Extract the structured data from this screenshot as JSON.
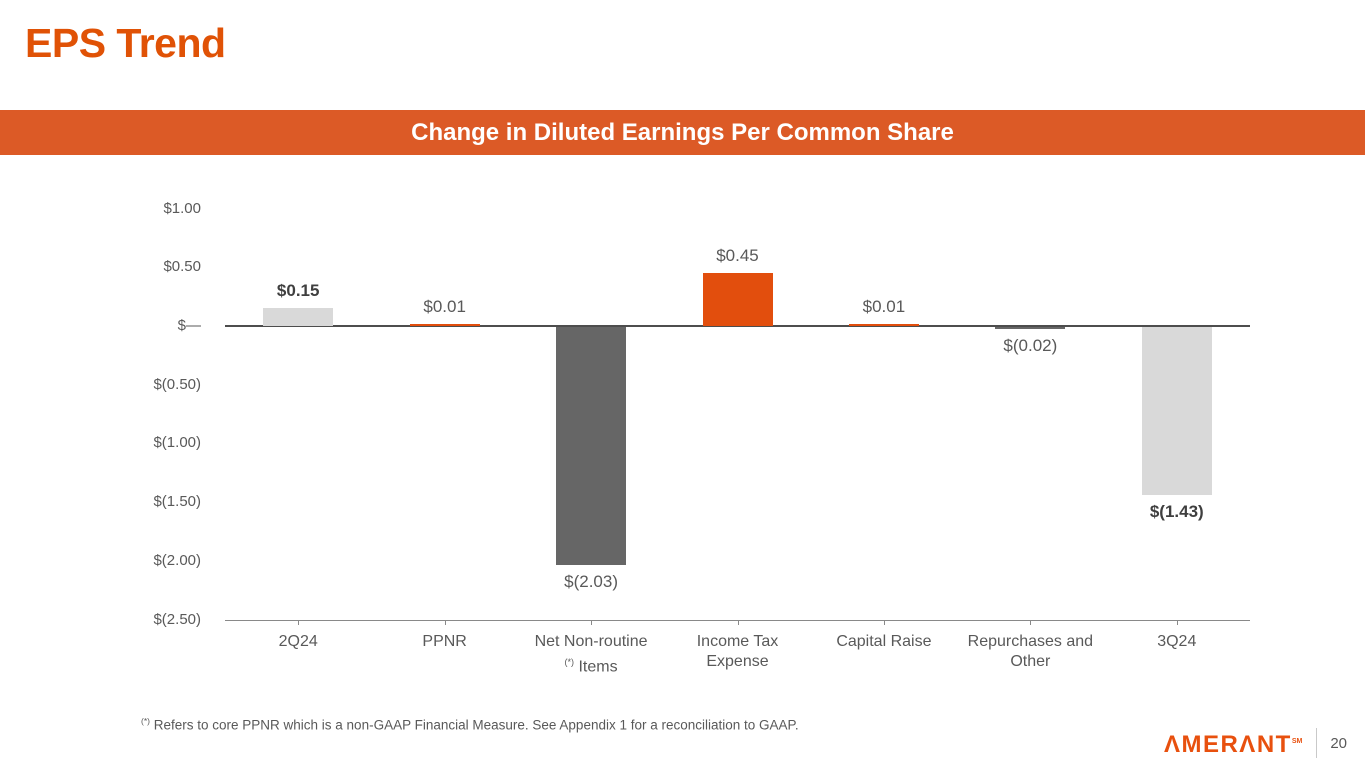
{
  "slide": {
    "title": "EPS Trend",
    "banner": "Change in Diluted Earnings Per Common Share",
    "footnote": {
      "marker": "(*)",
      "text": " Refers to core PPNR which is a non-GAAP Financial Measure. See Appendix 1 for a reconciliation to GAAP."
    },
    "page_number": "20",
    "logo": {
      "text": "AMERANT",
      "display": "ΛMERΛNT",
      "mark": "SM"
    }
  },
  "colors": {
    "accent_orange": "#E05206",
    "banner_bg": "#DC5A26",
    "orange": "#E24E0D",
    "dark_gray": "#666666",
    "light_gray": "#D9D9D9",
    "axis": "#4D4D4D",
    "label_gray": "#595959",
    "label_bold": "#3F3F3F"
  },
  "chart_data": {
    "type": "bar",
    "title": "Change in Diluted Earnings Per Common Share",
    "xlabel": "",
    "ylabel": "",
    "ylim": [
      -2.5,
      1.0
    ],
    "grid": false,
    "legend": "none",
    "y_ticks": [
      {
        "label": "$1.00",
        "value": 1.0
      },
      {
        "label": "$0.50",
        "value": 0.5
      },
      {
        "label": "$—",
        "value": 0.0
      },
      {
        "label": "$(0.50)",
        "value": -0.5
      },
      {
        "label": "$(1.00)",
        "value": -1.0
      },
      {
        "label": "$(1.50)",
        "value": -1.5
      },
      {
        "label": "$(2.00)",
        "value": -2.0
      },
      {
        "label": "$(2.50)",
        "value": -2.5
      }
    ],
    "categories": [
      {
        "lines": [
          {
            "text": "2Q24"
          }
        ]
      },
      {
        "lines": [
          {
            "text": "PPNR"
          }
        ]
      },
      {
        "lines": [
          {
            "text": "Net Non-routine"
          },
          {
            "sup": "(*)",
            "text": " Items"
          }
        ]
      },
      {
        "lines": [
          {
            "text": "Income Tax"
          },
          {
            "text": "Expense"
          }
        ]
      },
      {
        "lines": [
          {
            "text": "Capital Raise"
          }
        ]
      },
      {
        "lines": [
          {
            "text": "Repurchases and"
          },
          {
            "text": "Other"
          }
        ]
      },
      {
        "lines": [
          {
            "text": "3Q24"
          }
        ]
      }
    ],
    "values": [
      0.15,
      0.01,
      -2.03,
      0.45,
      0.01,
      -0.02,
      -1.43
    ],
    "data_labels": [
      "$0.15",
      "$0.01",
      "$(2.03)",
      "$0.45",
      "$0.01",
      "$(0.02)",
      "$(1.43)"
    ],
    "bar_colors": [
      "light_gray",
      "orange",
      "dark_gray",
      "orange",
      "orange",
      "dark_gray",
      "light_gray"
    ],
    "label_bold": [
      true,
      false,
      false,
      false,
      false,
      false,
      true
    ]
  }
}
